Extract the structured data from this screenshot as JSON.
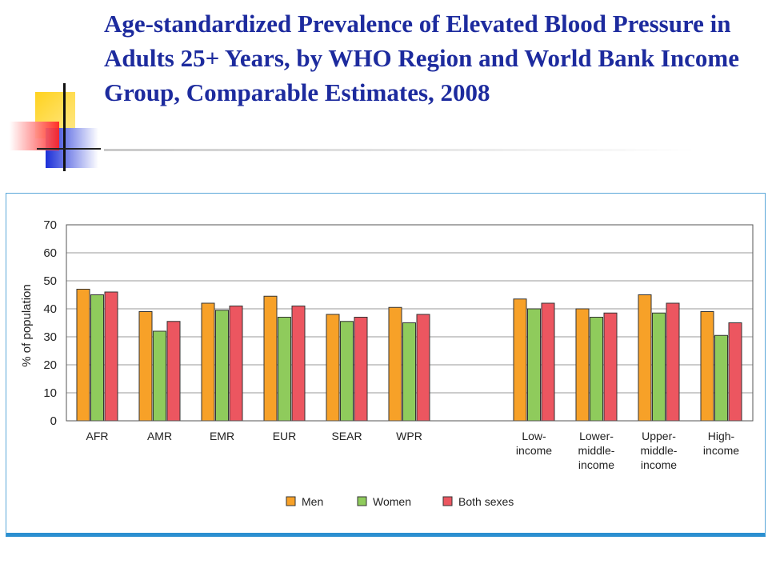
{
  "slide": {
    "title": "Age-standardized Prevalence of Elevated Blood Pressure in Adults 25+ Years, by WHO Region and World Bank Income Group, Comparable Estimates, 2008"
  },
  "colors": {
    "title": "#1d2b9e",
    "men": "#f7a128",
    "women": "#8fcb5c",
    "both": "#ec5660",
    "frame": "#2b8fd0"
  },
  "chart_data": {
    "type": "bar",
    "title": "",
    "xlabel": "",
    "ylabel": "% of population",
    "ylim": [
      0,
      70
    ],
    "yticks": [
      0,
      10,
      20,
      30,
      40,
      50,
      60,
      70
    ],
    "grid": true,
    "legend_position": "bottom-center",
    "categories": [
      [
        "AFR"
      ],
      [
        "AMR"
      ],
      [
        "EMR"
      ],
      [
        "EUR"
      ],
      [
        "SEAR"
      ],
      [
        "WPR"
      ],
      [
        "Low-",
        "income"
      ],
      [
        "Lower-",
        "middle-",
        "income"
      ],
      [
        "Upper-",
        "middle-",
        "income"
      ],
      [
        "High-",
        "income"
      ]
    ],
    "series": [
      {
        "name": "Men",
        "color": "#f7a128",
        "values": [
          47,
          39,
          42,
          44.5,
          38,
          40.5,
          43.5,
          40,
          45,
          39
        ]
      },
      {
        "name": "Women",
        "color": "#8fcb5c",
        "values": [
          45,
          32,
          39.5,
          37,
          35.5,
          35,
          40,
          37,
          38.5,
          30.5
        ]
      },
      {
        "name": "Both sexes",
        "color": "#ec5660",
        "values": [
          46,
          35.5,
          41,
          41,
          37,
          38,
          42,
          38.5,
          42,
          35
        ]
      }
    ]
  }
}
